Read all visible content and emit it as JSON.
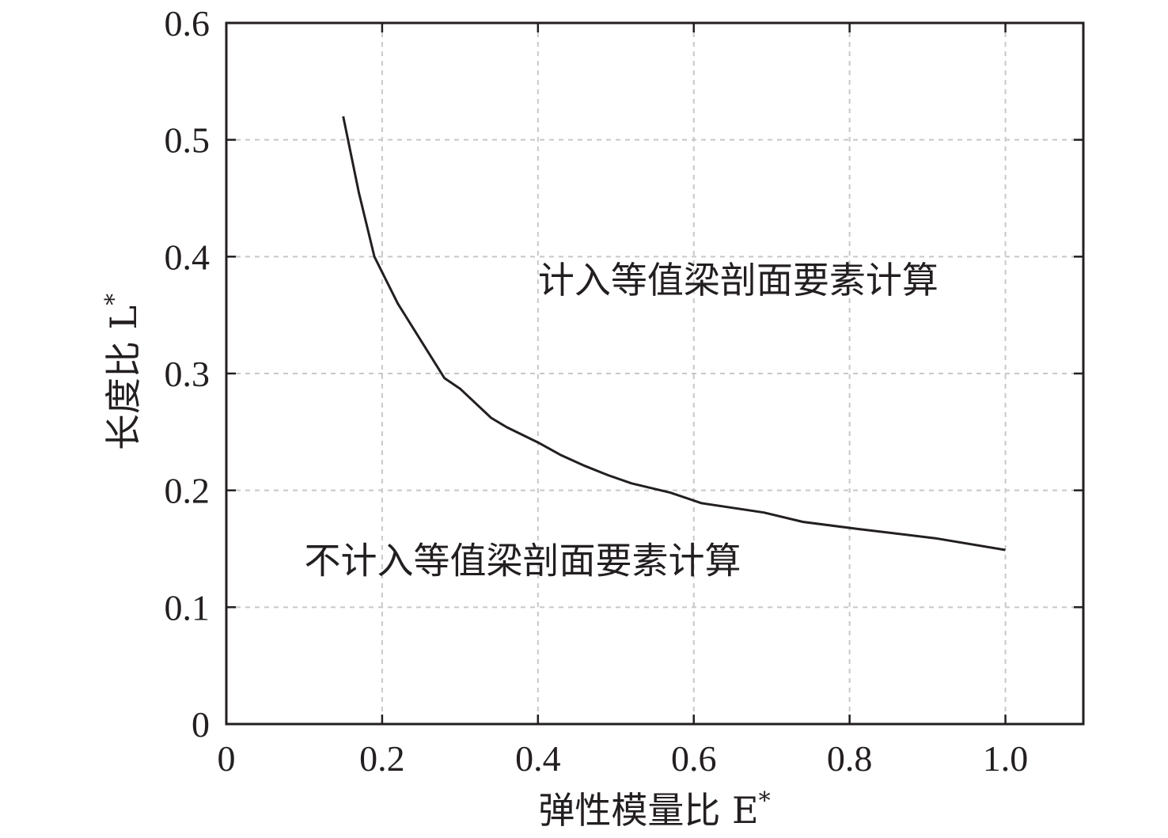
{
  "chart_data": {
    "type": "line",
    "xlabel": "弹性模量比 E",
    "ylabel": "长度比 L",
    "axis_symbol_superscript": "*",
    "xlim": [
      0,
      1.1
    ],
    "ylim": [
      0,
      0.6
    ],
    "x_ticks": [
      0,
      0.2,
      0.4,
      0.6,
      0.8,
      1.0
    ],
    "x_tick_labels": [
      "0",
      "0.2",
      "0.4",
      "0.6",
      "0.8",
      "1.0"
    ],
    "y_ticks": [
      0,
      0.1,
      0.2,
      0.3,
      0.4,
      0.5,
      0.6
    ],
    "y_tick_labels": [
      "0",
      "0.1",
      "0.2",
      "0.3",
      "0.4",
      "0.5",
      "0.6"
    ],
    "grid": true,
    "series": [
      {
        "x": [
          0.15,
          0.17,
          0.19,
          0.22,
          0.25,
          0.28,
          0.3,
          0.34,
          0.36,
          0.4,
          0.43,
          0.46,
          0.49,
          0.52,
          0.57,
          0.61,
          0.69,
          0.74,
          0.81,
          0.91,
          1.0
        ],
        "y": [
          0.52,
          0.455,
          0.4,
          0.36,
          0.328,
          0.296,
          0.287,
          0.262,
          0.254,
          0.241,
          0.23,
          0.221,
          0.213,
          0.206,
          0.198,
          0.189,
          0.181,
          0.173,
          0.167,
          0.159,
          0.149
        ]
      }
    ],
    "annotations": [
      {
        "text": "计入等值梁剖面要素计算",
        "x": 0.4,
        "y": 0.38
      },
      {
        "text": "不计入等值梁剖面要素计算",
        "x": 0.1,
        "y": 0.14
      }
    ]
  }
}
